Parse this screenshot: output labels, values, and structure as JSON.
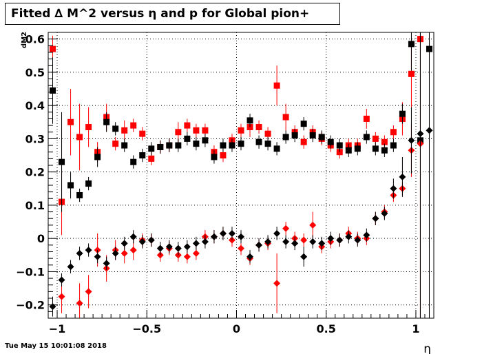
{
  "title": "Fitted ∆ M^2 versus η and p for Global pion+",
  "footer_timestamp": "Tue May 15 10:01:08 2018",
  "chart_data": {
    "type": "scatter",
    "title": "Fitted ∆ M^2 versus η and p for Global pion+",
    "xlabel": "η",
    "ylabel": "dM2",
    "xlim": [
      -1.05,
      1.1
    ],
    "ylim": [
      -0.24,
      0.62
    ],
    "x_ticks": [
      -1,
      -0.5,
      0,
      0.5,
      1
    ],
    "x_tick_labels": [
      "−1",
      "−0.5",
      "0",
      "0.5",
      "1"
    ],
    "y_ticks": [
      -0.2,
      -0.1,
      0,
      0.1,
      0.2,
      0.3,
      0.4,
      0.5,
      0.6
    ],
    "y_tick_labels": [
      "−0.2",
      "−0.1",
      "0",
      "0.1",
      "0.2",
      "0.3",
      "0.4",
      "0.5",
      "0.6"
    ],
    "grid": true,
    "colors": {
      "black": "#000000",
      "red": "#ff0000"
    },
    "series": [
      {
        "marker": "square",
        "color": "#ff0000",
        "x": [
          -1.025,
          -0.975,
          -0.925,
          -0.875,
          -0.825,
          -0.775,
          -0.725,
          -0.675,
          -0.625,
          -0.575,
          -0.525,
          -0.475,
          -0.425,
          -0.375,
          -0.325,
          -0.275,
          -0.225,
          -0.175,
          -0.125,
          -0.075,
          -0.025,
          0.025,
          0.075,
          0.125,
          0.175,
          0.225,
          0.275,
          0.325,
          0.375,
          0.425,
          0.475,
          0.525,
          0.575,
          0.625,
          0.675,
          0.725,
          0.775,
          0.825,
          0.875,
          0.925,
          0.975,
          1.025
        ],
        "y": [
          0.57,
          0.11,
          0.35,
          0.305,
          0.335,
          0.26,
          0.365,
          0.285,
          0.325,
          0.34,
          0.315,
          0.24,
          0.275,
          0.28,
          0.32,
          0.34,
          0.325,
          0.325,
          0.26,
          0.25,
          0.295,
          0.325,
          0.335,
          0.335,
          0.315,
          0.46,
          0.365,
          0.32,
          0.29,
          0.32,
          0.3,
          0.28,
          0.26,
          0.28,
          0.28,
          0.36,
          0.3,
          0.29,
          0.32,
          0.36,
          0.495,
          0.6
        ],
        "err": [
          0.04,
          0.1,
          0.1,
          0.1,
          0.06,
          0.03,
          0.04,
          0.02,
          0.03,
          0.02,
          0.02,
          0.02,
          0.02,
          0.02,
          0.03,
          0.02,
          0.02,
          0.02,
          0.02,
          0.02,
          0.02,
          0.02,
          0.03,
          0.02,
          0.02,
          0.06,
          0.04,
          0.02,
          0.02,
          0.02,
          0.02,
          0.02,
          0.02,
          0.02,
          0.02,
          0.03,
          0.02,
          0.02,
          0.02,
          0.05,
          0.1,
          0.9
        ]
      },
      {
        "marker": "square",
        "color": "#000000",
        "x": [
          -1.025,
          -0.975,
          -0.925,
          -0.875,
          -0.825,
          -0.775,
          -0.725,
          -0.675,
          -0.625,
          -0.575,
          -0.525,
          -0.475,
          -0.425,
          -0.375,
          -0.325,
          -0.275,
          -0.225,
          -0.175,
          -0.125,
          -0.075,
          -0.025,
          0.025,
          0.075,
          0.125,
          0.175,
          0.225,
          0.275,
          0.325,
          0.375,
          0.425,
          0.475,
          0.525,
          0.575,
          0.625,
          0.675,
          0.725,
          0.775,
          0.825,
          0.875,
          0.925,
          0.975,
          1.025,
          1.075
        ],
        "y": [
          0.445,
          0.23,
          0.16,
          0.13,
          0.165,
          0.245,
          0.35,
          0.33,
          0.28,
          0.23,
          0.25,
          0.27,
          0.275,
          0.28,
          0.28,
          0.3,
          0.285,
          0.295,
          0.245,
          0.28,
          0.28,
          0.285,
          0.355,
          0.29,
          0.285,
          0.27,
          0.305,
          0.31,
          0.345,
          0.31,
          0.305,
          0.29,
          0.28,
          0.265,
          0.27,
          0.305,
          0.27,
          0.265,
          0.28,
          0.375,
          0.585,
          0.295,
          0.57
        ],
        "err": [
          0.1,
          0.15,
          0.04,
          0.02,
          0.02,
          0.03,
          0.03,
          0.02,
          0.02,
          0.02,
          0.02,
          0.02,
          0.02,
          0.02,
          0.02,
          0.02,
          0.02,
          0.02,
          0.02,
          0.02,
          0.02,
          0.02,
          0.02,
          0.02,
          0.02,
          0.02,
          0.02,
          0.02,
          0.02,
          0.02,
          0.02,
          0.02,
          0.02,
          0.02,
          0.02,
          0.02,
          0.02,
          0.02,
          0.02,
          0.03,
          0.08,
          0.6,
          0.6
        ]
      },
      {
        "marker": "diamond",
        "color": "#ff0000",
        "x": [
          -0.975,
          -0.875,
          -0.825,
          -0.775,
          -0.725,
          -0.675,
          -0.625,
          -0.575,
          -0.525,
          -0.475,
          -0.425,
          -0.375,
          -0.325,
          -0.275,
          -0.225,
          -0.175,
          -0.125,
          -0.075,
          -0.025,
          0.025,
          0.075,
          0.125,
          0.175,
          0.225,
          0.275,
          0.325,
          0.375,
          0.425,
          0.475,
          0.525,
          0.575,
          0.625,
          0.675,
          0.725,
          0.775,
          0.825,
          0.875,
          0.925,
          0.975,
          1.025
        ],
        "y": [
          -0.175,
          -0.195,
          -0.16,
          -0.035,
          -0.09,
          -0.035,
          -0.045,
          -0.035,
          -0.005,
          -0.005,
          -0.05,
          -0.03,
          -0.05,
          -0.055,
          -0.045,
          0.005,
          0.005,
          0.015,
          -0.005,
          -0.03,
          -0.06,
          -0.02,
          -0.015,
          -0.135,
          0.03,
          0.0,
          -0.005,
          0.04,
          -0.025,
          -0.01,
          -0.005,
          0.015,
          0.0,
          0.0,
          0.06,
          0.08,
          0.13,
          0.15,
          0.265,
          0.285
        ],
        "err": [
          0.05,
          0.06,
          0.05,
          0.05,
          0.04,
          0.03,
          0.03,
          0.03,
          0.02,
          0.02,
          0.02,
          0.02,
          0.02,
          0.02,
          0.02,
          0.02,
          0.02,
          0.02,
          0.02,
          0.02,
          0.02,
          0.02,
          0.02,
          0.09,
          0.02,
          0.02,
          0.02,
          0.04,
          0.02,
          0.02,
          0.02,
          0.02,
          0.02,
          0.02,
          0.02,
          0.02,
          0.02,
          0.02,
          0.08,
          0.9
        ]
      },
      {
        "marker": "diamond",
        "color": "#000000",
        "x": [
          -1.025,
          -0.975,
          -0.925,
          -0.875,
          -0.825,
          -0.775,
          -0.725,
          -0.675,
          -0.625,
          -0.575,
          -0.525,
          -0.475,
          -0.425,
          -0.375,
          -0.325,
          -0.275,
          -0.225,
          -0.175,
          -0.125,
          -0.075,
          -0.025,
          0.025,
          0.075,
          0.125,
          0.175,
          0.225,
          0.275,
          0.325,
          0.375,
          0.425,
          0.475,
          0.525,
          0.575,
          0.625,
          0.675,
          0.725,
          0.775,
          0.825,
          0.875,
          0.925,
          0.975,
          1.025,
          1.075
        ],
        "y": [
          -0.205,
          -0.125,
          -0.085,
          -0.045,
          -0.035,
          -0.055,
          -0.075,
          -0.045,
          -0.015,
          0.005,
          -0.01,
          -0.005,
          -0.03,
          -0.025,
          -0.03,
          -0.025,
          -0.015,
          -0.01,
          0.005,
          0.015,
          0.015,
          0.005,
          -0.055,
          -0.02,
          -0.01,
          0.015,
          -0.01,
          -0.015,
          -0.055,
          -0.01,
          -0.015,
          0.0,
          -0.005,
          0.005,
          -0.005,
          0.01,
          0.06,
          0.075,
          0.15,
          0.185,
          0.295,
          0.315,
          0.325
        ],
        "err": [
          0.03,
          0.02,
          0.02,
          0.02,
          0.02,
          0.02,
          0.02,
          0.02,
          0.02,
          0.02,
          0.02,
          0.02,
          0.02,
          0.02,
          0.02,
          0.02,
          0.02,
          0.02,
          0.02,
          0.02,
          0.02,
          0.02,
          0.02,
          0.02,
          0.02,
          0.02,
          0.02,
          0.02,
          0.03,
          0.02,
          0.02,
          0.02,
          0.02,
          0.02,
          0.02,
          0.02,
          0.02,
          0.02,
          0.03,
          0.06,
          0.1,
          0.6,
          0.6
        ]
      }
    ]
  }
}
